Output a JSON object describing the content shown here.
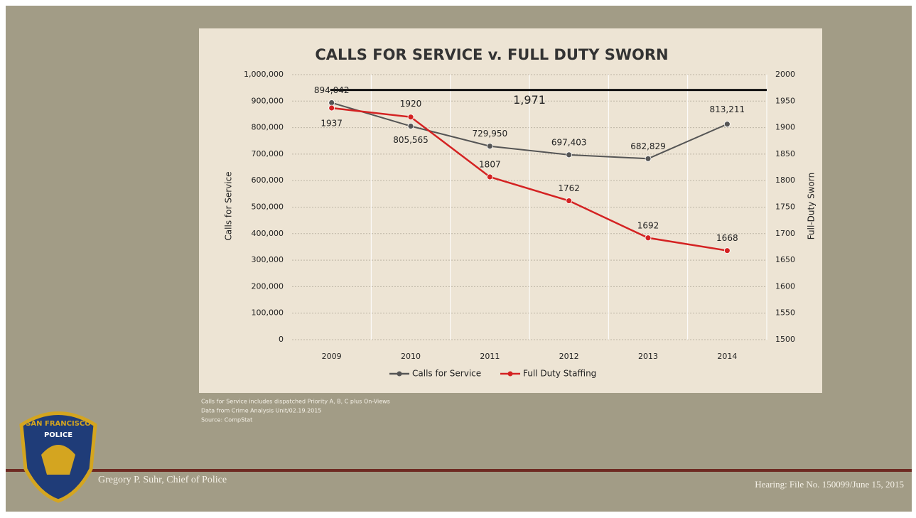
{
  "chart_data": {
    "type": "line",
    "title": "CALLS FOR SERVICE v. FULL DUTY SWORN",
    "y_label": "Calls for Service",
    "y2_label": "Full-Duty Sworn",
    "categories": [
      "2009",
      "2010",
      "2011",
      "2012",
      "2013",
      "2014"
    ],
    "series": [
      {
        "name": "Calls for Service",
        "color": "#555555",
        "values": [
          894042,
          805565,
          729950,
          697403,
          682829,
          813211
        ],
        "value_labels": [
          "894,042",
          "805,565",
          "729,950",
          "697,403",
          "682,829",
          "813,211"
        ]
      },
      {
        "name": "Full Duty Staffing",
        "color": "#d42222",
        "axis": "y2",
        "values": [
          1937,
          1920,
          1807,
          1762,
          1692,
          1668
        ]
      }
    ],
    "reference_line": {
      "axis": "y2",
      "value": 1971,
      "label": "1,971",
      "color": "#111111"
    },
    "ylim": [
      0,
      1000000
    ],
    "yticks": [
      0,
      {
        "value": 100000,
        "label": "100,000"
      },
      {
        "value": 200000,
        "label": "200,000"
      },
      {
        "value": 300000,
        "label": "300,000"
      },
      {
        "value": 400000,
        "label": "400,000"
      },
      {
        "value": 500000,
        "label": "500,000"
      },
      {
        "value": 600000,
        "label": "600,000"
      },
      {
        "value": 700000,
        "label": "700,000"
      },
      {
        "value": 800000,
        "label": "800,000"
      },
      {
        "value": 900000,
        "label": "900,000"
      },
      {
        "value": 1000000,
        "label": "1,000,000"
      }
    ],
    "y2lim": [
      1500,
      2000
    ],
    "y2ticks": [
      1500,
      1550,
      1600,
      1650,
      1700,
      1750,
      1800,
      1850,
      1900,
      1950,
      2000
    ],
    "grid": true,
    "legend": "bottom"
  },
  "notes": [
    "Calls for Service includes dispatched Priority A, B, C plus On-Views",
    "Data from Crime Analysis Unit/02.19.2015",
    "Source: CompStat"
  ],
  "footer": {
    "presenter": "Gregory P. Suhr, Chief of Police",
    "hearing": "Hearing: File No. 150099/June 15, 2015"
  },
  "badge": {
    "top": "SAN FRANCISCO",
    "middle": "POLICE"
  }
}
